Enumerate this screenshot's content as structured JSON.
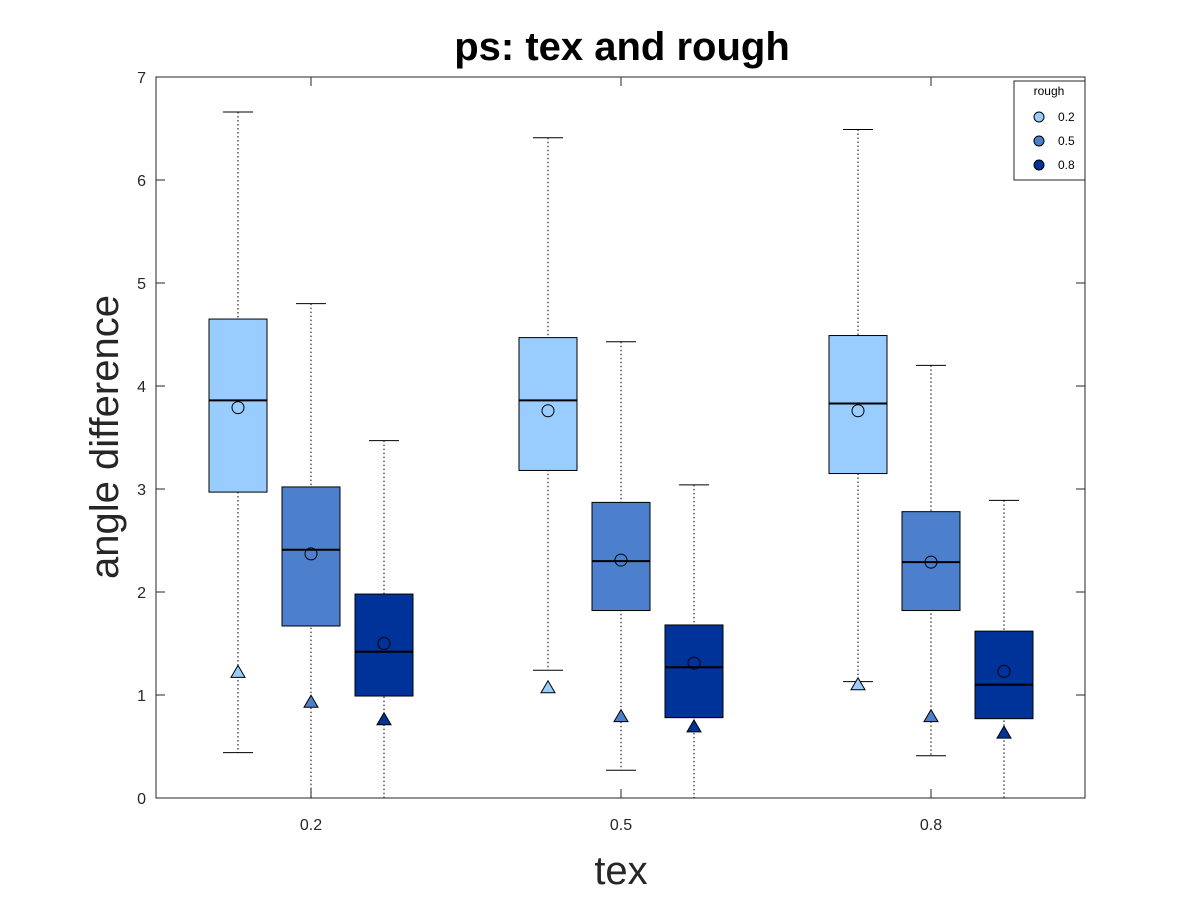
{
  "chart_data": {
    "type": "boxplot",
    "title": "ps: tex and rough",
    "xlabel": "tex",
    "ylabel": "angle difference",
    "ylim": [
      0,
      7
    ],
    "yticks": [
      0,
      1,
      2,
      3,
      4,
      5,
      6,
      7
    ],
    "categories": [
      "0.2",
      "0.5",
      "0.8"
    ],
    "legend": {
      "title": "rough",
      "position": "top-right"
    },
    "grid": false,
    "series": [
      {
        "name": "0.2",
        "color": "#99CCFF",
        "boxes": [
          {
            "whisker_low": 0.44,
            "q1": 2.97,
            "median": 3.86,
            "q3": 4.65,
            "whisker_high": 6.66,
            "mean": 3.79,
            "marker": 1.22
          },
          {
            "whisker_low": 1.24,
            "q1": 3.18,
            "median": 3.86,
            "q3": 4.47,
            "whisker_high": 6.41,
            "mean": 3.76,
            "marker": 1.07
          },
          {
            "whisker_low": 1.13,
            "q1": 3.15,
            "median": 3.83,
            "q3": 4.49,
            "whisker_high": 6.49,
            "mean": 3.76,
            "marker": 1.1
          }
        ]
      },
      {
        "name": "0.5",
        "color": "#4D80CC",
        "boxes": [
          {
            "whisker_low": 0.0,
            "q1": 1.67,
            "median": 2.41,
            "q3": 3.02,
            "whisker_high": 4.8,
            "mean": 2.37,
            "marker": 0.93
          },
          {
            "whisker_low": 0.27,
            "q1": 1.82,
            "median": 2.3,
            "q3": 2.87,
            "whisker_high": 4.43,
            "mean": 2.31,
            "marker": 0.79
          },
          {
            "whisker_low": 0.41,
            "q1": 1.82,
            "median": 2.29,
            "q3": 2.78,
            "whisker_high": 4.2,
            "mean": 2.29,
            "marker": 0.79
          }
        ]
      },
      {
        "name": "0.8",
        "color": "#003399",
        "boxes": [
          {
            "whisker_low": 0.0,
            "q1": 0.99,
            "median": 1.42,
            "q3": 1.98,
            "whisker_high": 3.47,
            "mean": 1.5,
            "marker": 0.76
          },
          {
            "whisker_low": 0.0,
            "q1": 0.78,
            "median": 1.27,
            "q3": 1.68,
            "whisker_high": 3.04,
            "mean": 1.31,
            "marker": 0.69
          },
          {
            "whisker_low": 0.0,
            "q1": 0.77,
            "median": 1.1,
            "q3": 1.62,
            "whisker_high": 2.89,
            "mean": 1.23,
            "marker": 0.63
          }
        ]
      }
    ]
  }
}
